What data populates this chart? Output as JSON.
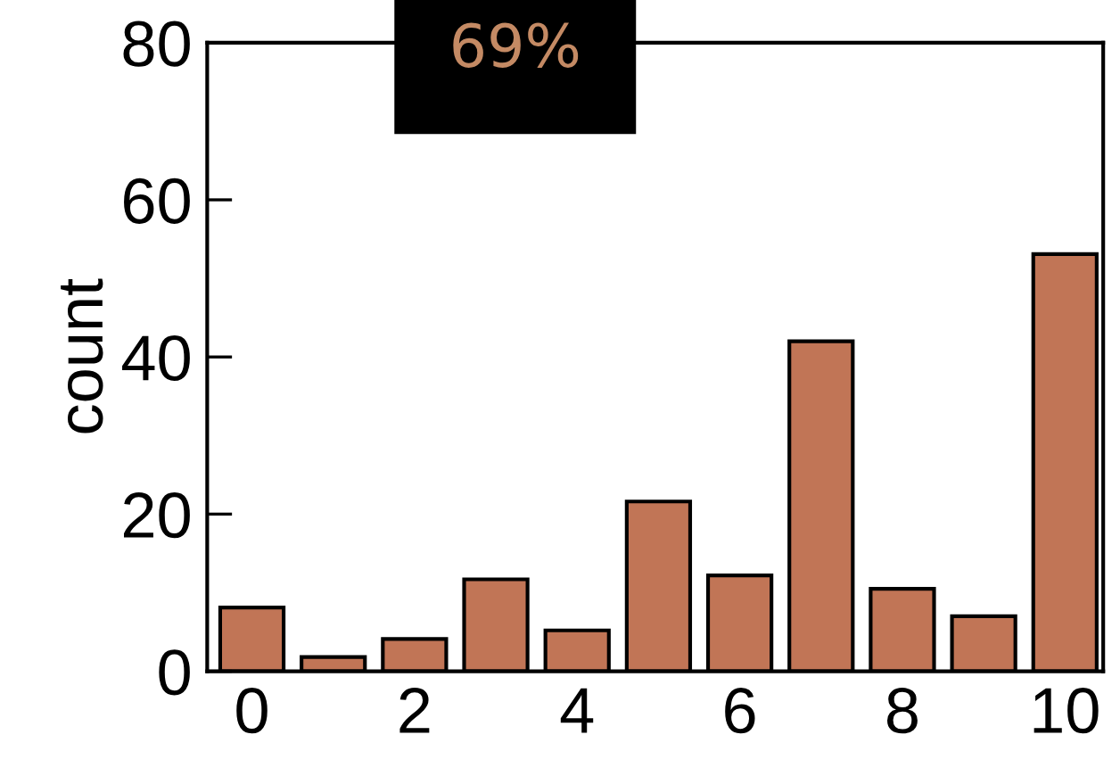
{
  "chart_data": {
    "type": "bar",
    "x": [
      0,
      1,
      2,
      3,
      4,
      5,
      6,
      7,
      8,
      9,
      10
    ],
    "values": [
      8.1,
      1.8,
      4.1,
      11.7,
      5.2,
      21.6,
      12.2,
      42,
      10.5,
      7.0,
      53.1
    ],
    "color": "#c17556",
    "ylabel": "count",
    "xlim": [
      -0.55,
      10.47
    ],
    "xticks": [
      0,
      2,
      4,
      6,
      8,
      10
    ],
    "ylim": [
      0,
      80
    ],
    "yticks": [
      0,
      20,
      40,
      60,
      80
    ],
    "annotations": [
      "69%"
    ],
    "grid": false,
    "legend": false
  }
}
